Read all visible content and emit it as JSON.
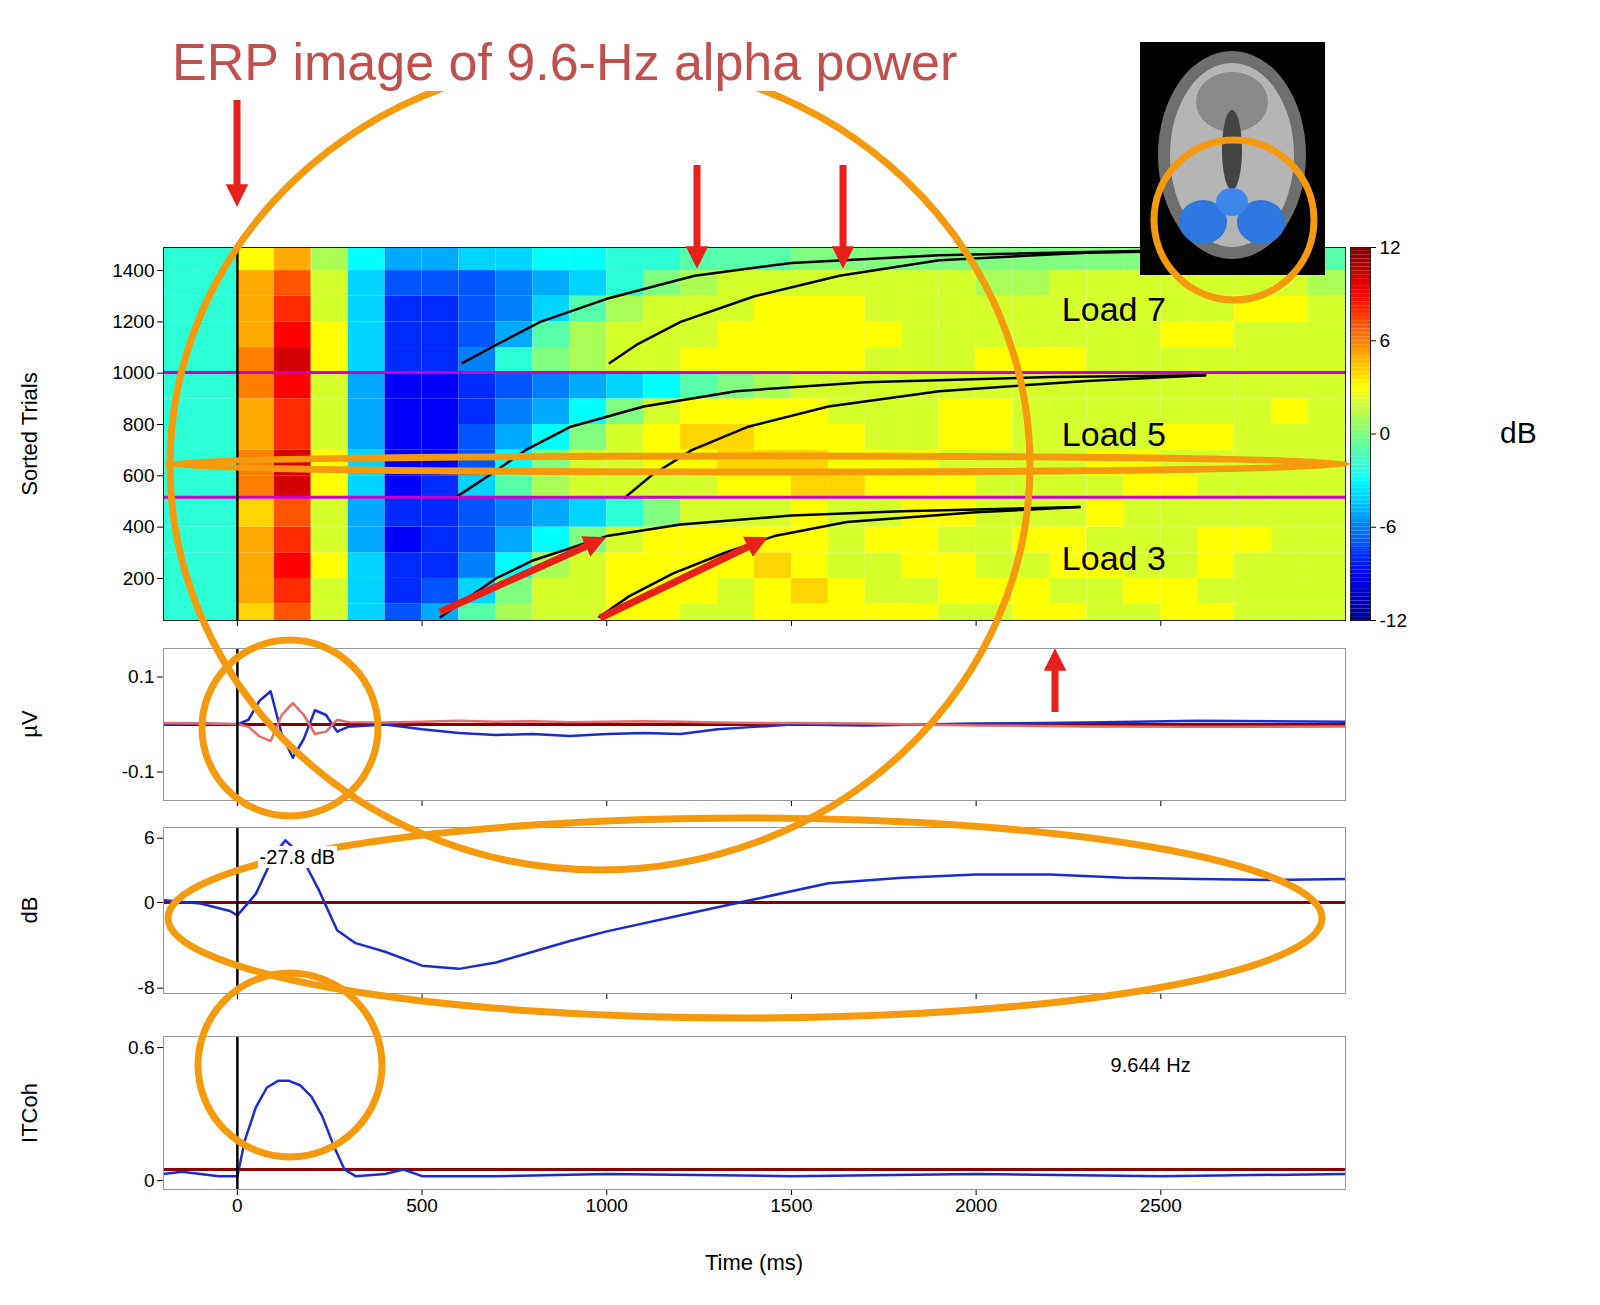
{
  "chart_data": [
    {
      "type": "heatmap",
      "title": "ERP image of 9.6-Hz alpha power",
      "ylabel": "Sorted Trials",
      "xlim": [
        -200,
        3000
      ],
      "xticks": [
        0,
        500,
        1000,
        1500,
        2000,
        2500
      ],
      "ylim": [
        36,
        1490
      ],
      "yticks": [
        200,
        400,
        600,
        800,
        1000,
        1200,
        1400
      ],
      "tick_labels": "y",
      "vline": 0,
      "boundaries": [
        516,
        1003
      ],
      "annotations": [
        "Load 3",
        "Load 5",
        "Load 7"
      ],
      "colorbar": {
        "label": "dB",
        "lim": [
          -12,
          12
        ],
        "ticks": [
          -12,
          -6,
          0,
          6,
          12
        ]
      },
      "x_edges": [
        -200,
        -100,
        0,
        100,
        200,
        300,
        400,
        500,
        600,
        700,
        800,
        900,
        1000,
        1100,
        1200,
        1300,
        1400,
        1500,
        1600,
        1700,
        1800,
        1900,
        2000,
        2100,
        2200,
        2300,
        2400,
        2500,
        2600,
        2700,
        2800,
        2900,
        3000
      ],
      "y_edges": [
        36,
        100,
        200,
        300,
        400,
        516,
        600,
        700,
        800,
        900,
        1003,
        1100,
        1200,
        1300,
        1400,
        1490
      ],
      "cells": [
        [
          -2,
          -2,
          4,
          7,
          2,
          -4,
          -7,
          -5,
          -1,
          1,
          2,
          2,
          3,
          3,
          2,
          2,
          3,
          3,
          3,
          3,
          3,
          2,
          2,
          3,
          3,
          2,
          2,
          3,
          3,
          2,
          2,
          2
        ],
        [
          -2,
          -2,
          5,
          8,
          2,
          -4,
          -8,
          -7,
          -4,
          0,
          2,
          2,
          3,
          3,
          3,
          2,
          3,
          4,
          3,
          2,
          2,
          3,
          3,
          3,
          2,
          2,
          3,
          3,
          2,
          2,
          2,
          2
        ],
        [
          -2,
          -2,
          5,
          9,
          3,
          -4,
          -8,
          -8,
          -6,
          -3,
          1,
          2,
          3,
          3,
          3,
          3,
          4,
          3,
          2,
          2,
          3,
          3,
          2,
          2,
          3,
          3,
          2,
          2,
          3,
          2,
          2,
          2
        ],
        [
          -2,
          -2,
          5,
          8,
          2,
          -5,
          -9,
          -8,
          -7,
          -5,
          -3,
          0,
          2,
          3,
          3,
          3,
          3,
          3,
          2,
          3,
          3,
          2,
          2,
          3,
          3,
          2,
          2,
          2,
          3,
          3,
          2,
          2
        ],
        [
          -2,
          -2,
          4,
          7,
          2,
          -5,
          -8,
          -8,
          -7,
          -6,
          -5,
          -4,
          -2,
          0,
          2,
          2,
          2,
          3,
          2,
          2,
          3,
          3,
          2,
          2,
          2,
          3,
          2,
          2,
          2,
          2,
          2,
          2
        ],
        [
          -2,
          -2,
          6,
          10,
          3,
          -4,
          -9,
          -8,
          -4,
          -1,
          1,
          2,
          2,
          2,
          2,
          3,
          3,
          4,
          4,
          3,
          3,
          3,
          2,
          2,
          2,
          2,
          3,
          3,
          2,
          2,
          2,
          2
        ],
        [
          -2,
          -2,
          6,
          10,
          3,
          -4,
          -9,
          -9,
          -7,
          -3,
          0,
          2,
          2,
          3,
          3,
          4,
          4,
          4,
          3,
          3,
          3,
          2,
          2,
          2,
          2,
          3,
          3,
          2,
          2,
          2,
          2,
          2
        ],
        [
          -2,
          -2,
          5,
          8,
          2,
          -5,
          -9,
          -9,
          -7,
          -5,
          -3,
          0,
          2,
          3,
          4,
          4,
          3,
          3,
          3,
          2,
          2,
          3,
          3,
          2,
          2,
          2,
          2,
          3,
          3,
          2,
          2,
          2
        ],
        [
          -2,
          -2,
          5,
          8,
          2,
          -5,
          -9,
          -9,
          -8,
          -6,
          -5,
          -3,
          0,
          2,
          3,
          3,
          3,
          3,
          2,
          2,
          2,
          3,
          3,
          2,
          2,
          2,
          2,
          2,
          2,
          2,
          3,
          2
        ],
        [
          -2,
          -2,
          6,
          9,
          2,
          -5,
          -9,
          -9,
          -8,
          -7,
          -6,
          -5,
          -4,
          -3,
          -1,
          0,
          1,
          2,
          2,
          2,
          2,
          2,
          2,
          2,
          2,
          2,
          2,
          2,
          2,
          2,
          2,
          2
        ],
        [
          -2,
          -2,
          6,
          10,
          3,
          -4,
          -8,
          -8,
          -6,
          -2,
          0,
          1,
          2,
          2,
          3,
          3,
          3,
          3,
          3,
          2,
          2,
          2,
          3,
          3,
          3,
          2,
          2,
          2,
          2,
          2,
          2,
          2
        ],
        [
          -2,
          -2,
          5,
          9,
          3,
          -4,
          -8,
          -8,
          -7,
          -5,
          -1,
          1,
          2,
          2,
          2,
          3,
          3,
          3,
          3,
          3,
          2,
          2,
          2,
          2,
          2,
          2,
          2,
          3,
          3,
          2,
          2,
          2
        ],
        [
          -2,
          -2,
          5,
          8,
          2,
          -4,
          -8,
          -8,
          -7,
          -6,
          -4,
          -1,
          1,
          2,
          2,
          2,
          3,
          3,
          3,
          2,
          2,
          2,
          2,
          2,
          2,
          2,
          2,
          2,
          2,
          3,
          3,
          2
        ],
        [
          -2,
          -2,
          5,
          7,
          2,
          -4,
          -7,
          -7,
          -7,
          -6,
          -5,
          -4,
          -2,
          0,
          1,
          2,
          2,
          2,
          2,
          2,
          2,
          2,
          1,
          1,
          2,
          2,
          2,
          2,
          2,
          2,
          2,
          1
        ],
        [
          -2,
          -2,
          3,
          5,
          1,
          -3,
          -5,
          -5,
          -4,
          -4,
          -3,
          -3,
          -2,
          -2,
          -1,
          -1,
          -1,
          0,
          0,
          0,
          0,
          0,
          0,
          0,
          0,
          0,
          0,
          0,
          0,
          0,
          0,
          -1
        ]
      ],
      "series": [
        {
          "color": "#000000",
          "x": [
            550,
            620,
            700,
            800,
            1000,
            1200,
            1500,
            1800,
            2280
          ],
          "values": [
            50,
            120,
            200,
            270,
            365,
            410,
            445,
            462,
            478
          ]
        },
        {
          "color": "#000000",
          "x": [
            980,
            1060,
            1180,
            1320,
            1454,
            1650,
            2000,
            2280
          ],
          "values": [
            50,
            130,
            220,
            300,
            365,
            420,
            458,
            478
          ]
        },
        {
          "color": "#000000",
          "x": [
            590,
            680,
            780,
            900,
            1100,
            1350,
            1700,
            2200,
            2620
          ],
          "values": [
            515,
            600,
            700,
            790,
            870,
            930,
            965,
            985,
            992
          ]
        },
        {
          "color": "#000000",
          "x": [
            1049,
            1120,
            1230,
            1380,
            1600,
            1900,
            2300,
            2620
          ],
          "values": [
            515,
            600,
            700,
            790,
            870,
            930,
            970,
            992
          ]
        },
        {
          "color": "#000000",
          "x": [
            610,
            700,
            820,
            1000,
            1238,
            1500,
            1900,
            2500,
            2900
          ],
          "values": [
            1040,
            1110,
            1200,
            1290,
            1380,
            1430,
            1460,
            1478,
            1485
          ]
        },
        {
          "color": "#000000",
          "x": [
            1008,
            1080,
            1200,
            1400,
            1630,
            1900,
            2300,
            2900
          ],
          "values": [
            1040,
            1110,
            1200,
            1300,
            1380,
            1440,
            1470,
            1485
          ]
        }
      ]
    },
    {
      "type": "line",
      "ylabel": "µV",
      "xlim": [
        -200,
        3000
      ],
      "xticks": [
        0,
        500,
        1000,
        1500,
        2000,
        2500
      ],
      "ylim": [
        -0.16,
        0.16
      ],
      "yticks": [
        -0.1,
        0.1
      ],
      "tick_labels": "y",
      "vline": 0,
      "hline": 0,
      "x": [
        -200,
        -100,
        0,
        30,
        60,
        90,
        120,
        150,
        180,
        210,
        240,
        270,
        300,
        400,
        500,
        600,
        700,
        800,
        900,
        1000,
        1100,
        1200,
        1300,
        1400,
        1500,
        1700,
        2000,
        2300,
        2600,
        3000
      ],
      "series": [
        {
          "color": "#1a2ccf",
          "values": [
            0,
            0.002,
            0,
            0.01,
            0.05,
            0.07,
            -0.02,
            -0.07,
            -0.03,
            0.03,
            0.02,
            -0.015,
            -0.005,
            0,
            -0.01,
            -0.018,
            -0.022,
            -0.02,
            -0.024,
            -0.02,
            -0.018,
            -0.02,
            -0.01,
            -0.005,
            0,
            -0.002,
            0.002,
            0.004,
            0.008,
            0.006
          ]
        },
        {
          "color": "#e36b6b",
          "values": [
            0.003,
            0.002,
            0.001,
            -0.005,
            -0.025,
            -0.035,
            0.02,
            0.045,
            0.02,
            -0.02,
            -0.015,
            0.01,
            0.005,
            0.004,
            0.006,
            0.008,
            0.006,
            0.007,
            0.005,
            0.006,
            0.007,
            0.006,
            0.004,
            0.003,
            0.003,
            0.002,
            -0.002,
            -0.004,
            -0.005,
            -0.004
          ]
        }
      ]
    },
    {
      "type": "line",
      "ylabel": "dB",
      "xlim": [
        -200,
        3000
      ],
      "xticks": [
        0,
        500,
        1000,
        1500,
        2000,
        2500
      ],
      "ylim": [
        -8.5,
        7
      ],
      "yticks": [
        -8,
        0,
        6
      ],
      "tick_labels": "y",
      "vline": 0,
      "hline": 0,
      "annotations": [
        "-27.8 dB"
      ],
      "x": [
        -200,
        -100,
        -20,
        0,
        50,
        100,
        130,
        170,
        220,
        270,
        320,
        400,
        500,
        600,
        700,
        800,
        900,
        1000,
        1200,
        1400,
        1600,
        1800,
        2000,
        2200,
        2400,
        2600,
        2800,
        3000
      ],
      "series": [
        {
          "color": "#1a2ccf",
          "values": [
            0.2,
            -0.1,
            -0.8,
            -1.2,
            0.8,
            4.5,
            5.8,
            4.5,
            1.2,
            -2.6,
            -3.8,
            -4.6,
            -5.9,
            -6.2,
            -5.6,
            -4.6,
            -3.6,
            -2.7,
            -1.2,
            0.3,
            1.8,
            2.3,
            2.6,
            2.6,
            2.3,
            2.2,
            2.1,
            2.2
          ]
        }
      ]
    },
    {
      "type": "line",
      "ylabel": "ITCoh",
      "xlabel": "Time (ms)",
      "xlim": [
        -200,
        3000
      ],
      "xticks": [
        0,
        500,
        1000,
        1500,
        2000,
        2500
      ],
      "ylim": [
        -0.04,
        0.65
      ],
      "yticks": [
        0,
        0.6
      ],
      "vline": 0,
      "hline": 0.05,
      "annotations": [
        "9.644 Hz"
      ],
      "x": [
        -200,
        -150,
        -100,
        -50,
        0,
        20,
        50,
        80,
        110,
        140,
        170,
        200,
        230,
        260,
        290,
        320,
        400,
        450,
        500,
        700,
        1000,
        1500,
        2000,
        2500,
        3000
      ],
      "series": [
        {
          "color": "#1a2ccf",
          "values": [
            0.03,
            0.04,
            0.03,
            0.02,
            0.02,
            0.18,
            0.33,
            0.42,
            0.45,
            0.45,
            0.43,
            0.38,
            0.29,
            0.16,
            0.05,
            0.02,
            0.03,
            0.05,
            0.02,
            0.02,
            0.03,
            0.02,
            0.03,
            0.02,
            0.03
          ]
        }
      ]
    }
  ]
}
